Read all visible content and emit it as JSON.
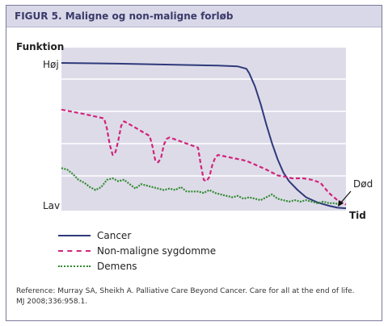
{
  "figure_title": "FIGUR 5. Maligne og non-maligne forløb",
  "reference_line1": "Reference: Murray SA, Sheikh A. Palliative Care Beyond Cancer. Care for all at the end of life.",
  "reference_line2": "MJ 2008;336:958.1.",
  "chart_data": {
    "type": "line",
    "ylabel": "Funktion",
    "xlabel": "Tid",
    "y_tick_labels": [
      "Høj",
      "Lav"
    ],
    "annotation": "Død",
    "xlim": [
      0,
      100
    ],
    "ylim": [
      0,
      100
    ],
    "grid": true,
    "legend_position": "bottom-left",
    "series": [
      {
        "name": "Cancer",
        "color": "#2e3a7a",
        "style": "solid",
        "x": [
          0,
          20,
          40,
          55,
          62,
          65,
          66,
          68,
          70,
          72,
          74,
          76,
          78,
          80,
          83,
          86,
          90,
          94,
          97,
          100
        ],
        "y": [
          100,
          99.5,
          98.8,
          98.2,
          97.6,
          96,
          93,
          84,
          72,
          58,
          45,
          34,
          25,
          19,
          13,
          8,
          4.5,
          2.2,
          0.9,
          0.5
        ]
      },
      {
        "name": "Non-maligne sygdomme",
        "color": "#d0247a",
        "style": "dashed",
        "x": [
          0,
          8,
          15,
          16,
          17,
          18,
          19,
          20,
          21,
          22,
          23,
          31,
          32,
          33,
          34,
          35,
          36,
          37,
          38,
          48,
          49,
          50,
          51,
          52,
          53,
          54,
          55,
          65,
          72,
          76,
          79,
          81,
          85,
          88,
          91,
          94,
          97,
          100
        ],
        "y": [
          68,
          65,
          62,
          55,
          44,
          37,
          39,
          47,
          57,
          60,
          59,
          50,
          43,
          33,
          32,
          35,
          44,
          48,
          49,
          42,
          30,
          20,
          19,
          22,
          30,
          35,
          37,
          33,
          27,
          23,
          22,
          21,
          21,
          20,
          18,
          11,
          6,
          3
        ]
      },
      {
        "name": "Demens",
        "color": "#2e8b2e",
        "style": "dotted",
        "x": [
          0,
          2,
          4,
          6,
          8,
          10,
          12,
          14,
          16,
          18,
          20,
          22,
          24,
          26,
          28,
          30,
          32,
          34,
          36,
          38,
          40,
          42,
          44,
          46,
          48,
          50,
          52,
          54,
          56,
          58,
          60,
          62,
          64,
          66,
          68,
          70,
          72,
          74,
          76,
          78,
          80,
          82,
          84,
          86,
          88,
          90,
          92,
          94,
          96,
          98
        ],
        "y": [
          28,
          27,
          24,
          20,
          18,
          15,
          13,
          15,
          20,
          21,
          19,
          20,
          17,
          14,
          17,
          16,
          15,
          14,
          13,
          14,
          13,
          15,
          12,
          12,
          12,
          11,
          13,
          11,
          10,
          9,
          8,
          9,
          7,
          8,
          7,
          6,
          8,
          10,
          7,
          6,
          5,
          6,
          5,
          6,
          5,
          4,
          5,
          4,
          4,
          3
        ]
      }
    ]
  }
}
